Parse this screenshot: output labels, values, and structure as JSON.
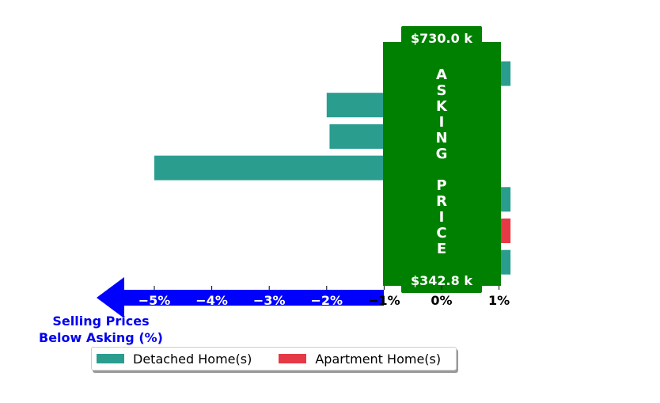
{
  "chart_data": {
    "type": "bar",
    "orientation": "horizontal",
    "series": [
      {
        "name": "Detached Home(s)",
        "color": "#2a9d8f"
      },
      {
        "name": "Apartment Home(s)",
        "color": "#e63946"
      }
    ],
    "bars": [
      {
        "series": "Detached Home(s)",
        "value": 1.2
      },
      {
        "series": "Detached Home(s)",
        "value": -2.0
      },
      {
        "series": "Detached Home(s)",
        "value": -1.95
      },
      {
        "series": "Detached Home(s)",
        "value": -5.0
      },
      {
        "series": "Detached Home(s)",
        "value": 1.2
      },
      {
        "series": "Apartment Home(s)",
        "value": 1.2
      },
      {
        "series": "Detached Home(s)",
        "value": 1.2
      }
    ],
    "xlim": [
      -6.5,
      1.5
    ],
    "x_ticks": [
      -5,
      -4,
      -3,
      -2,
      -1,
      0,
      1
    ],
    "x_tick_labels": [
      "−5%",
      "−4%",
      "−3%",
      "−2%",
      "−1%",
      "0%",
      "1%"
    ],
    "x_axis_label": [
      "Selling Prices",
      "Below Asking (%)"
    ],
    "asking_band": {
      "label": "ASKING PRICE",
      "top_price_label": "$730.0 k",
      "bottom_price_label": "$342.8 k",
      "color": "#008000"
    },
    "arrow_color": "#0000ff",
    "legend": {
      "position": "below",
      "entries": [
        "Detached Home(s)",
        "Apartment Home(s)"
      ]
    },
    "grid": false
  }
}
